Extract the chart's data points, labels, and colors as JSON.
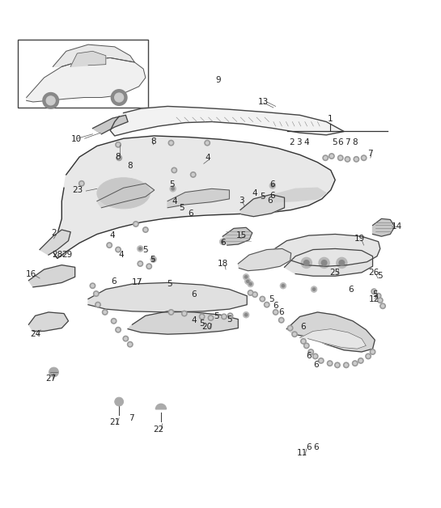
{
  "title": "",
  "bg_color": "#ffffff",
  "line_color": "#333333",
  "label_fontsize": 7.5,
  "dpi": 100,
  "figw": 5.45,
  "figh": 6.28
}
